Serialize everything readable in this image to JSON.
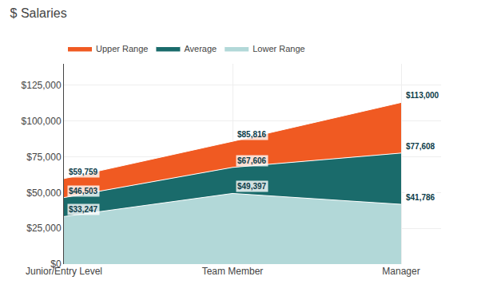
{
  "chart_data": {
    "type": "area",
    "title": "$ Salaries",
    "categories": [
      "Junior/Entry Level",
      "Team Member",
      "Manager"
    ],
    "series": [
      {
        "name": "Lower Range",
        "color": "#b2d8d8",
        "values": [
          33247,
          49397,
          41786
        ],
        "value_labels": [
          "$33,247",
          "$49,397",
          "$41,786"
        ]
      },
      {
        "name": "Average",
        "color": "#1a6b6b",
        "values": [
          46503,
          67606,
          77608
        ],
        "value_labels": [
          "$46,503",
          "$67,606",
          "$77,608"
        ]
      },
      {
        "name": "Upper Range",
        "color": "#f05a22",
        "values": [
          59759,
          85816,
          113000
        ],
        "value_labels": [
          "$59,759",
          "$85,816",
          "$113,000"
        ]
      }
    ],
    "ylim": [
      0,
      140000
    ],
    "yticks": [
      {
        "value": 0,
        "label": "$0"
      },
      {
        "value": 25000,
        "label": "$25,000"
      },
      {
        "value": 50000,
        "label": "$50,000"
      },
      {
        "value": 75000,
        "label": "$75,000"
      },
      {
        "value": 100000,
        "label": "$100,000"
      },
      {
        "value": 125000,
        "label": "$125,000"
      }
    ],
    "grid": true,
    "legend": "top",
    "stacked": false,
    "data_labels": true
  }
}
